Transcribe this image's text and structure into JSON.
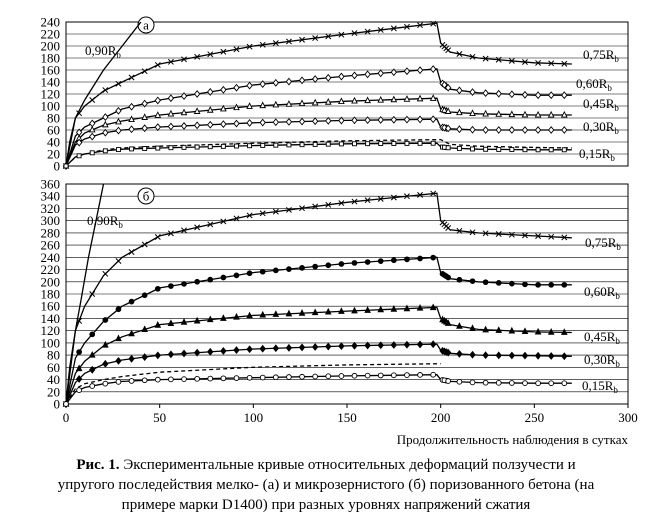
{
  "chart_data": [
    {
      "type": "line",
      "panel_label": "а",
      "xlim": [
        0,
        300
      ],
      "ylim": [
        0,
        240
      ],
      "yticks": [
        "0",
        "20",
        "40",
        "60",
        "80",
        "100",
        "120",
        "140",
        "160",
        "180",
        "200",
        "220",
        "240"
      ],
      "grid": "horizontal",
      "series": [
        {
          "name": "0,90R",
          "sub": "b",
          "marker": "none",
          "x": [
            0,
            2,
            5,
            10,
            15,
            20,
            30,
            40
          ],
          "y": [
            0,
            40,
            80,
            110,
            135,
            160,
            200,
            240
          ]
        },
        {
          "name": "0,75R",
          "sub": "b",
          "marker": "cross",
          "x": [
            0,
            5,
            10,
            20,
            30,
            50,
            100,
            150,
            198,
            200,
            205,
            220,
            250,
            270
          ],
          "y": [
            0,
            80,
            100,
            125,
            140,
            170,
            200,
            220,
            238,
            205,
            190,
            180,
            172,
            170
          ]
        },
        {
          "name": "0,60R",
          "sub": "b",
          "marker": "diamond-open",
          "x": [
            0,
            5,
            10,
            20,
            30,
            50,
            100,
            150,
            198,
            200,
            205,
            220,
            250,
            270
          ],
          "y": [
            0,
            50,
            65,
            80,
            95,
            110,
            135,
            150,
            162,
            140,
            128,
            122,
            118,
            118
          ]
        },
        {
          "name": "0,45R",
          "sub": "b",
          "marker": "triangle-open",
          "x": [
            0,
            5,
            10,
            20,
            30,
            50,
            100,
            150,
            198,
            200,
            205,
            220,
            250,
            270
          ],
          "y": [
            0,
            40,
            55,
            68,
            75,
            85,
            100,
            108,
            113,
            95,
            90,
            87,
            85,
            85
          ]
        },
        {
          "name": "0,30R",
          "sub": "b",
          "marker": "diamond-open",
          "x": [
            0,
            5,
            10,
            20,
            30,
            50,
            100,
            150,
            198,
            200,
            205,
            220,
            250,
            270
          ],
          "y": [
            0,
            35,
            45,
            55,
            60,
            65,
            72,
            76,
            78,
            65,
            62,
            60,
            60,
            60
          ]
        },
        {
          "name": "",
          "sub": "",
          "marker": "dashed",
          "x": [
            0,
            5,
            10,
            20,
            30,
            50,
            100,
            150,
            200,
            205,
            220,
            250,
            270
          ],
          "y": [
            0,
            15,
            20,
            27,
            30,
            33,
            38,
            42,
            44,
            36,
            33,
            31,
            30
          ]
        },
        {
          "name": "0,15R",
          "sub": "b",
          "marker": "square-open",
          "x": [
            0,
            5,
            10,
            20,
            30,
            50,
            100,
            150,
            198,
            200,
            205,
            220,
            250,
            270
          ],
          "y": [
            0,
            15,
            20,
            25,
            28,
            30,
            34,
            37,
            38,
            32,
            30,
            28,
            27,
            27
          ]
        }
      ]
    },
    {
      "type": "line",
      "panel_label": "б",
      "xlim": [
        0,
        300
      ],
      "ylim": [
        0,
        360
      ],
      "xticks": [
        "0",
        "50",
        "100",
        "150",
        "200",
        "250",
        "300"
      ],
      "yticks": [
        "0",
        "20",
        "40",
        "60",
        "80",
        "100",
        "120",
        "140",
        "160",
        "180",
        "200",
        "220",
        "240",
        "260",
        "280",
        "300",
        "320",
        "340",
        "360"
      ],
      "xlabel": "Продолжительность наблюдения в сутках",
      "grid": "horizontal",
      "series": [
        {
          "name": "0,90R",
          "sub": "b",
          "marker": "none",
          "x": [
            0,
            2,
            5,
            8,
            12,
            16,
            20
          ],
          "y": [
            0,
            60,
            120,
            170,
            240,
            300,
            360
          ]
        },
        {
          "name": "0,75R",
          "sub": "b",
          "marker": "cross",
          "x": [
            0,
            5,
            10,
            20,
            30,
            50,
            100,
            150,
            198,
            200,
            205,
            220,
            250,
            270
          ],
          "y": [
            0,
            120,
            160,
            210,
            240,
            275,
            310,
            330,
            345,
            300,
            285,
            280,
            275,
            272
          ]
        },
        {
          "name": "0,60R",
          "sub": "b",
          "marker": "dot",
          "x": [
            0,
            5,
            10,
            20,
            30,
            50,
            100,
            150,
            198,
            200,
            205,
            220,
            250,
            270
          ],
          "y": [
            0,
            75,
            100,
            135,
            160,
            190,
            215,
            230,
            240,
            215,
            205,
            200,
            195,
            195
          ]
        },
        {
          "name": "0,45R",
          "sub": "b",
          "marker": "triangle",
          "x": [
            0,
            5,
            10,
            20,
            30,
            50,
            100,
            150,
            198,
            200,
            205,
            220,
            250,
            270
          ],
          "y": [
            0,
            50,
            70,
            95,
            110,
            130,
            145,
            152,
            158,
            140,
            130,
            122,
            118,
            117
          ]
        },
        {
          "name": "0,30R",
          "sub": "b",
          "marker": "diamond",
          "x": [
            0,
            5,
            10,
            20,
            30,
            50,
            100,
            150,
            198,
            200,
            205,
            220,
            250,
            270
          ],
          "y": [
            0,
            35,
            50,
            65,
            72,
            80,
            90,
            95,
            98,
            88,
            83,
            80,
            79,
            78
          ]
        },
        {
          "name": "",
          "sub": "",
          "marker": "dashed",
          "x": [
            0,
            5,
            10,
            20,
            30,
            50,
            100,
            150,
            200
          ],
          "y": [
            0,
            25,
            33,
            40,
            45,
            52,
            60,
            64,
            66
          ]
        },
        {
          "name": "0,15R",
          "sub": "b",
          "marker": "dot-open",
          "x": [
            0,
            5,
            10,
            20,
            30,
            50,
            100,
            150,
            198,
            200,
            205,
            220,
            250,
            270
          ],
          "y": [
            0,
            20,
            27,
            33,
            37,
            40,
            43,
            46,
            48,
            40,
            37,
            35,
            34,
            34
          ]
        }
      ]
    }
  ],
  "caption": {
    "label": "Рис. 1.",
    "lines": [
      " Экспериментальные кривые относительных деформаций ползучести и",
      "упругого последействия мелко- (а) и микрозернистого (б) поризованного бетона (на",
      "примере марки D1400) при разных уровнях напряжений сжатия"
    ]
  }
}
